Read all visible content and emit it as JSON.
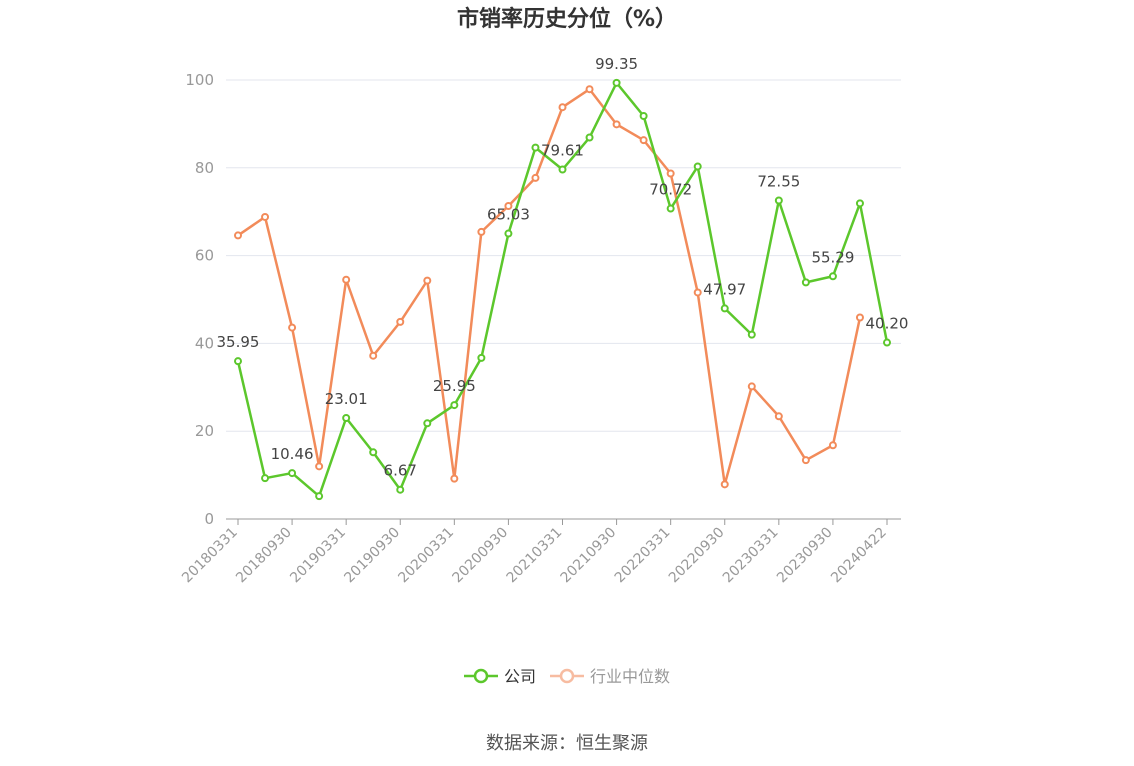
{
  "chart_data": {
    "type": "line",
    "title": "市销率历史分位（%）",
    "xlabel": "",
    "ylabel": "",
    "ylim": [
      0,
      100
    ],
    "y_ticks": [
      0,
      20,
      40,
      60,
      80,
      100
    ],
    "x": [
      "20180331",
      "20180630",
      "20180930",
      "20181231",
      "20190331",
      "20190630",
      "20190930",
      "20191231",
      "20200331",
      "20200630",
      "20200930",
      "20201231",
      "20210331",
      "20210630",
      "20210930",
      "20211231",
      "20220331",
      "20220630",
      "20220930",
      "20221231",
      "20230331",
      "20230630",
      "20230930",
      "20231231",
      "20240422"
    ],
    "x_tick_labels": [
      "20180331",
      "20180930",
      "20190331",
      "20190930",
      "20200331",
      "20200930",
      "20210331",
      "20210930",
      "20220331",
      "20220930",
      "20230331",
      "20230930",
      "20240422"
    ],
    "series": [
      {
        "name": "公司",
        "color": "#5cc72c",
        "values": [
          35.95,
          9.3,
          10.46,
          5.2,
          23.01,
          15.2,
          6.67,
          21.8,
          25.95,
          36.7,
          65.03,
          84.6,
          79.61,
          86.9,
          99.35,
          91.8,
          70.72,
          80.3,
          47.97,
          42.0,
          72.55,
          53.9,
          55.29,
          71.9,
          40.2
        ],
        "labels": [
          "35.95",
          "",
          "10.46",
          "",
          "23.01",
          "",
          "6.67",
          "",
          "25.95",
          "",
          "65.03",
          "",
          "79.61",
          "",
          "99.35",
          "",
          "70.72",
          "",
          "47.97",
          "",
          "72.55",
          "",
          "55.29",
          "",
          "40.20"
        ]
      },
      {
        "name": "行业中位数",
        "color": "#f28b5a",
        "values": [
          64.6,
          68.8,
          43.6,
          12.0,
          54.5,
          37.2,
          44.9,
          54.3,
          9.2,
          65.4,
          71.3,
          77.7,
          93.8,
          97.9,
          89.9,
          86.3,
          78.7,
          51.6,
          7.9,
          30.2,
          23.4,
          13.4,
          16.8,
          45.9,
          null
        ]
      }
    ],
    "legend": {
      "position": "bottom",
      "items": [
        "公司",
        "行业中位数"
      ]
    },
    "grid": true
  },
  "source_text": "数据来源：恒生聚源"
}
